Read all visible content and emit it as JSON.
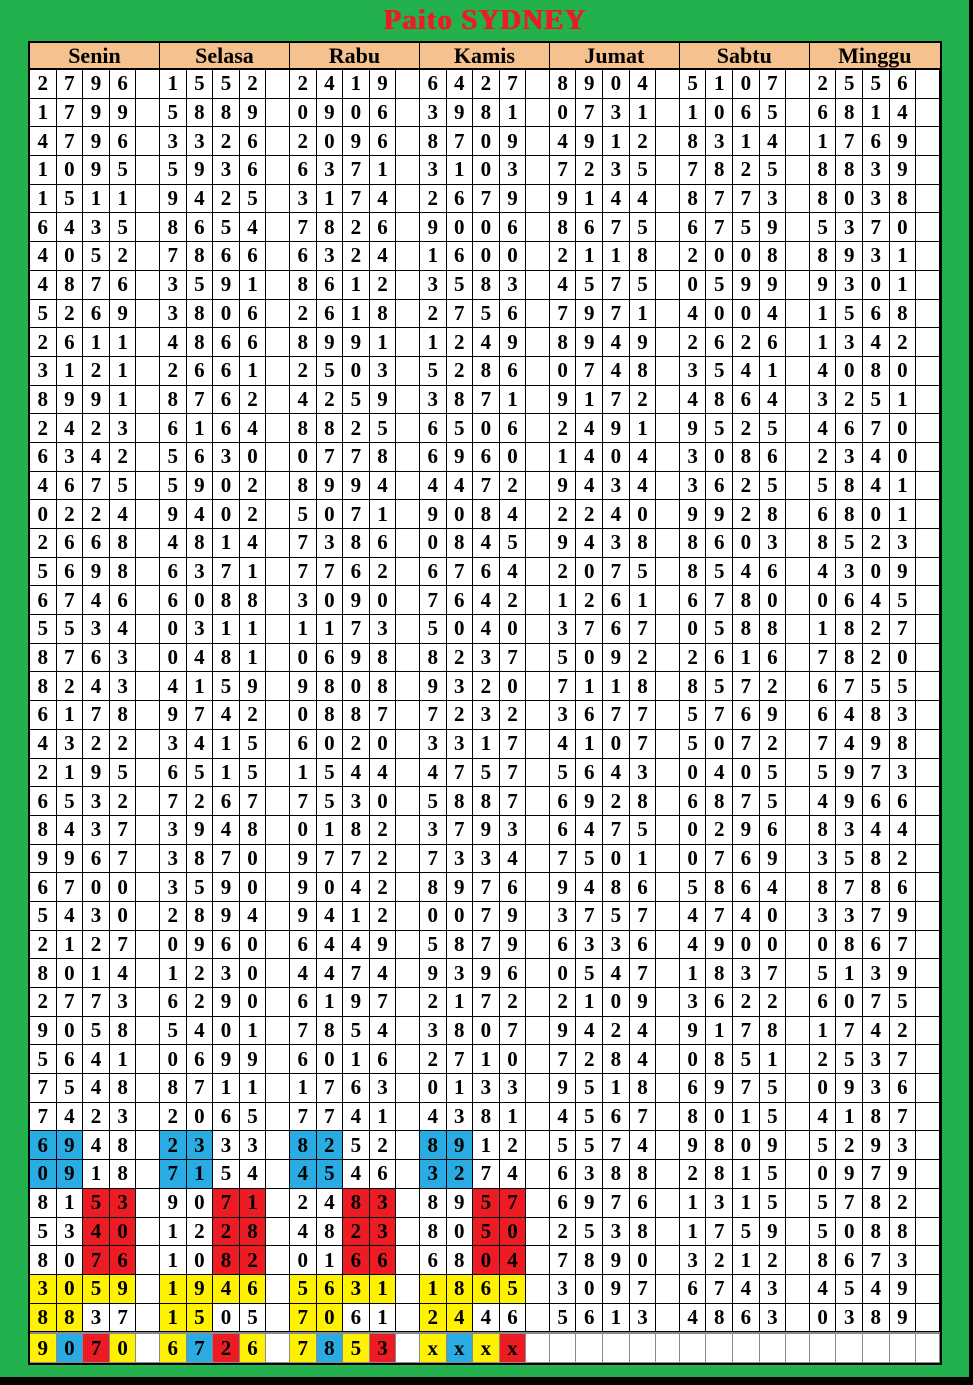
{
  "title": "Paito SYDNEY",
  "colors": {
    "background_green": "#22B14C",
    "title_red": "#ED1C24",
    "header_peach": "#F4C18F",
    "highlight_blue": "#29ACE3",
    "highlight_red": "#ED1C24",
    "highlight_yellow": "#FFF200",
    "grid_border_black": "#000000",
    "grid_border_gray": "#8a8a8a"
  },
  "table": {
    "days": [
      "Senin",
      "Selasa",
      "Rabu",
      "Kamis",
      "Jumat",
      "Sabtu",
      "Minggu"
    ],
    "mark_legend": {
      "b": "blue",
      "r": "red",
      "y": "yellow",
      "-": "none"
    },
    "rows": [
      {
        "values": [
          "2796",
          "1552",
          "2419",
          "6427",
          "8904",
          "5107",
          "2556"
        ]
      },
      {
        "values": [
          "1799",
          "5889",
          "0906",
          "3981",
          "0731",
          "1065",
          "6814"
        ]
      },
      {
        "values": [
          "4796",
          "3326",
          "2096",
          "8709",
          "4912",
          "8314",
          "1769"
        ]
      },
      {
        "values": [
          "1095",
          "5936",
          "6371",
          "3103",
          "7235",
          "7825",
          "8839"
        ]
      },
      {
        "values": [
          "1511",
          "9425",
          "3174",
          "2679",
          "9144",
          "8773",
          "8038"
        ]
      },
      {
        "values": [
          "6435",
          "8654",
          "7826",
          "9006",
          "8675",
          "6759",
          "5370"
        ]
      },
      {
        "values": [
          "4052",
          "7866",
          "6324",
          "1600",
          "2118",
          "2008",
          "8931"
        ]
      },
      {
        "values": [
          "4876",
          "3591",
          "8612",
          "3583",
          "4575",
          "0599",
          "9301"
        ]
      },
      {
        "values": [
          "5269",
          "3806",
          "2618",
          "2756",
          "7971",
          "4004",
          "1568"
        ]
      },
      {
        "values": [
          "2611",
          "4866",
          "8991",
          "1249",
          "8949",
          "2626",
          "1342"
        ]
      },
      {
        "values": [
          "3121",
          "2661",
          "2503",
          "5286",
          "0748",
          "3541",
          "4080"
        ]
      },
      {
        "values": [
          "8991",
          "8762",
          "4259",
          "3871",
          "9172",
          "4864",
          "3251"
        ]
      },
      {
        "values": [
          "2423",
          "6164",
          "8825",
          "6506",
          "2491",
          "9525",
          "4670"
        ]
      },
      {
        "values": [
          "6342",
          "5630",
          "0778",
          "6960",
          "1404",
          "3086",
          "2340"
        ]
      },
      {
        "values": [
          "4675",
          "5902",
          "8994",
          "4472",
          "9434",
          "3625",
          "5841"
        ]
      },
      {
        "values": [
          "0224",
          "9402",
          "5071",
          "9084",
          "2240",
          "9928",
          "6801"
        ]
      },
      {
        "values": [
          "2668",
          "4814",
          "7386",
          "0845",
          "9438",
          "8603",
          "8523"
        ]
      },
      {
        "values": [
          "5698",
          "6371",
          "7762",
          "6764",
          "2075",
          "8546",
          "4309"
        ]
      },
      {
        "values": [
          "6746",
          "6088",
          "3090",
          "7642",
          "1261",
          "6780",
          "0645"
        ]
      },
      {
        "values": [
          "5534",
          "0311",
          "1173",
          "5040",
          "3767",
          "0588",
          "1827"
        ]
      },
      {
        "values": [
          "8763",
          "0481",
          "0698",
          "8237",
          "5092",
          "2616",
          "7820"
        ]
      },
      {
        "values": [
          "8243",
          "4159",
          "9808",
          "9320",
          "7118",
          "8572",
          "6755"
        ]
      },
      {
        "values": [
          "6178",
          "9742",
          "0887",
          "7232",
          "3677",
          "5769",
          "6483"
        ]
      },
      {
        "values": [
          "4322",
          "3415",
          "6020",
          "3317",
          "4107",
          "5072",
          "7498"
        ]
      },
      {
        "values": [
          "2195",
          "6515",
          "1544",
          "4757",
          "5643",
          "0405",
          "5973"
        ]
      },
      {
        "values": [
          "6532",
          "7267",
          "7530",
          "5887",
          "6928",
          "6875",
          "4966"
        ]
      },
      {
        "values": [
          "8437",
          "3948",
          "0182",
          "3793",
          "6475",
          "0296",
          "8344"
        ]
      },
      {
        "values": [
          "9967",
          "3870",
          "9772",
          "7334",
          "7501",
          "0769",
          "3582"
        ]
      },
      {
        "values": [
          "6700",
          "3590",
          "9042",
          "8976",
          "9486",
          "5864",
          "8786"
        ]
      },
      {
        "values": [
          "5430",
          "2894",
          "9412",
          "0079",
          "3757",
          "4740",
          "3379"
        ]
      },
      {
        "values": [
          "2127",
          "0960",
          "6449",
          "5879",
          "6336",
          "4900",
          "0867"
        ]
      },
      {
        "values": [
          "8014",
          "1230",
          "4474",
          "9396",
          "0547",
          "1837",
          "5139"
        ]
      },
      {
        "values": [
          "2773",
          "6290",
          "6197",
          "2172",
          "2109",
          "3622",
          "6075"
        ]
      },
      {
        "values": [
          "9058",
          "5401",
          "7854",
          "3807",
          "9424",
          "9178",
          "1742"
        ]
      },
      {
        "values": [
          "5641",
          "0699",
          "6016",
          "2710",
          "7284",
          "0851",
          "2537"
        ]
      },
      {
        "values": [
          "7548",
          "8711",
          "1763",
          "0133",
          "9518",
          "6975",
          "0936"
        ]
      },
      {
        "values": [
          "7423",
          "2065",
          "7741",
          "4381",
          "4567",
          "8015",
          "4187"
        ]
      },
      {
        "values": [
          "6948",
          "2333",
          "8252",
          "8912",
          "5574",
          "9809",
          "5293"
        ],
        "marks": [
          "bb--",
          "bb--",
          "bb--",
          "bb--",
          "----",
          "----",
          "----"
        ]
      },
      {
        "values": [
          "0918",
          "7154",
          "4546",
          "3274",
          "6388",
          "2815",
          "0979"
        ],
        "marks": [
          "bb--",
          "bb--",
          "bb--",
          "bb--",
          "----",
          "----",
          "----"
        ]
      },
      {
        "values": [
          "8153",
          "9071",
          "2483",
          "8957",
          "6976",
          "1315",
          "5782"
        ],
        "marks": [
          "--rr",
          "--rr",
          "--rr",
          "--rr",
          "----",
          "----",
          "----"
        ]
      },
      {
        "values": [
          "5340",
          "1228",
          "4823",
          "8050",
          "2538",
          "1759",
          "5088"
        ],
        "marks": [
          "--rr",
          "--rr",
          "--rr",
          "--rr",
          "----",
          "----",
          "----"
        ]
      },
      {
        "values": [
          "8076",
          "1082",
          "0166",
          "6804",
          "7890",
          "3212",
          "8673"
        ],
        "marks": [
          "--rr",
          "--rr",
          "--rr",
          "--rr",
          "----",
          "----",
          "----"
        ]
      },
      {
        "values": [
          "3059",
          "1946",
          "5631",
          "1865",
          "3097",
          "6743",
          "4549"
        ],
        "marks": [
          "yyyy",
          "yyyy",
          "yyyy",
          "yyyy",
          "----",
          "----",
          "----"
        ]
      },
      {
        "values": [
          "8837",
          "1505",
          "7061",
          "2446",
          "5613",
          "4863",
          "0389"
        ],
        "marks": [
          "yy--",
          "yy--",
          "yy--",
          "yy--",
          "----",
          "----",
          "----"
        ]
      },
      {
        "values": [
          "9070",
          "6726",
          "7853",
          "xxxx",
          "",
          "",
          ""
        ],
        "marks": [
          "ybry",
          "ybry",
          "ybyr",
          "ybyr",
          "----",
          "----",
          "----"
        ],
        "gray_border": true
      }
    ]
  }
}
